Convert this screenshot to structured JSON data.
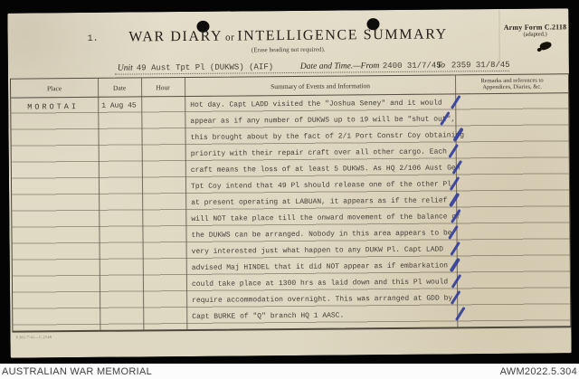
{
  "frame": {
    "footer_left": "AUSTRALIAN WAR MEMORIAL",
    "footer_right": "AWM2022.5.304"
  },
  "form": {
    "page_number": "1.",
    "title_part1": "WAR DIARY",
    "title_or": "or",
    "title_part2": "INTELLIGENCE SUMMARY",
    "subtitle": "(Erase heading not required).",
    "form_ref": "Army Form C.2118",
    "form_ref_note": "(adapted.)",
    "unit_label": "Unit",
    "unit_value": "49 Aust Tpt Pl (DUKWS) (AIF)",
    "datetime_label": "Date and Time.—From",
    "from_value": "2400 31/7/45",
    "to_label": "To",
    "to_value": "2359 31/8/45",
    "print_code": "P.381/7/41—C.2548"
  },
  "table": {
    "headers": {
      "place": "Place",
      "date": "Date",
      "hour": "Hour",
      "summary": "Summary of Events and Information",
      "remarks_line1": "Remarks and references to",
      "remarks_line2": "Appendices, Diaries, &c."
    },
    "entry": {
      "place": "MOROTAI",
      "date": "1 Aug 45",
      "hour": "",
      "summary_lines": [
        "Hot day. Capt LADD visited the \"Joshua Seney\" and it would",
        "appear as if any number of DUKWS up to 19 will be \"shut out\",",
        "this brought about by the fact of 2/1 Port Constr Coy obtaining",
        "priority with their repair craft over all other cargo. Each",
        "craft means the loss of at least 5 DUKWS. As HQ 2/106 Aust Gen",
        "Tpt Coy intend that 49 Pl should release one of the other Pl",
        "at present operating at LABUAN, it appears as if the relief",
        "will NOT take place till the onward movement of the balance of",
        "the DUKWS can be arranged. Nobody in this area appears to be",
        "very interested just what happen to any DUKW Pl. Capt LADD",
        "advised Maj HINDEL that it did NOT appear as if embarkation",
        "could take place at 1300 hrs as laid down and this Pl would",
        "require accommodation overnight. This was arranged at GDD by",
        "Capt BURKE of \"Q\" branch HQ 1 AASC."
      ]
    }
  },
  "annotations": {
    "tick_count": 14,
    "tick_color": "#323e9c"
  }
}
